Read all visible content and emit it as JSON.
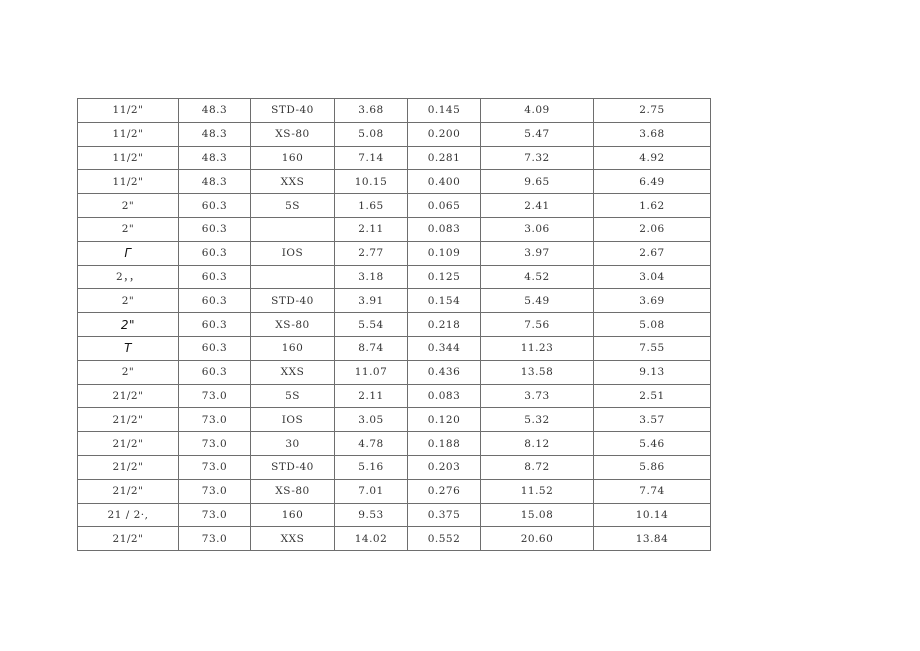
{
  "table": {
    "rows": [
      [
        "11/2\"",
        "48.3",
        "STD-40",
        "3.68",
        "0.145",
        "4.09",
        "2.75"
      ],
      [
        "11/2\"",
        "48.3",
        "XS-80",
        "5.08",
        "0.200",
        "5.47",
        "3.68"
      ],
      [
        "11/2\"",
        "48.3",
        "160",
        "7.14",
        "0.281",
        "7.32",
        "4.92"
      ],
      [
        "11/2\"",
        "48.3",
        "XXS",
        "10.15",
        "0.400",
        "9.65",
        "6.49"
      ],
      [
        "2\"",
        "60.3",
        "5S",
        "1.65",
        "0.065",
        "2.41",
        "1.62"
      ],
      [
        "2\"",
        "60.3",
        "",
        "2.11",
        "0.083",
        "3.06",
        "2.06"
      ],
      [
        "Γ",
        "60.3",
        "IOS",
        "2.77",
        "0.109",
        "3.97",
        "2.67"
      ],
      [
        "2，，",
        "60.3",
        "",
        "3.18",
        "0.125",
        "4.52",
        "3.04"
      ],
      [
        "2\"",
        "60.3",
        "STD-40",
        "3.91",
        "0.154",
        "5.49",
        "3.69"
      ],
      [
        "2\"",
        "60.3",
        "XS-80",
        "5.54",
        "0.218",
        "7.56",
        "5.08"
      ],
      [
        "T",
        "60.3",
        "160",
        "8.74",
        "0.344",
        "11.23",
        "7.55"
      ],
      [
        "2\"",
        "60.3",
        "XXS",
        "11.07",
        "0.436",
        "13.58",
        "9.13"
      ],
      [
        "21/2\"",
        "73.0",
        "5S",
        "2.11",
        "0.083",
        "3.73",
        "2.51"
      ],
      [
        "21/2\"",
        "73.0",
        "IOS",
        "3.05",
        "0.120",
        "5.32",
        "3.57"
      ],
      [
        "21/2\"",
        "73.0",
        "30",
        "4.78",
        "0.188",
        "8.12",
        "5.46"
      ],
      [
        "21/2\"",
        "73.0",
        "STD-40",
        "5.16",
        "0.203",
        "8.72",
        "5.86"
      ],
      [
        "21/2\"",
        "73.0",
        "XS-80",
        "7.01",
        "0.276",
        "11.52",
        "7.74"
      ],
      [
        "21 / 2·,",
        "73.0",
        "160",
        "9.53",
        "0.375",
        "15.08",
        "10.14"
      ],
      [
        "21/2\"",
        "73.0",
        "XXS",
        "14.02",
        "0.552",
        "20.60",
        "13.84"
      ]
    ]
  }
}
